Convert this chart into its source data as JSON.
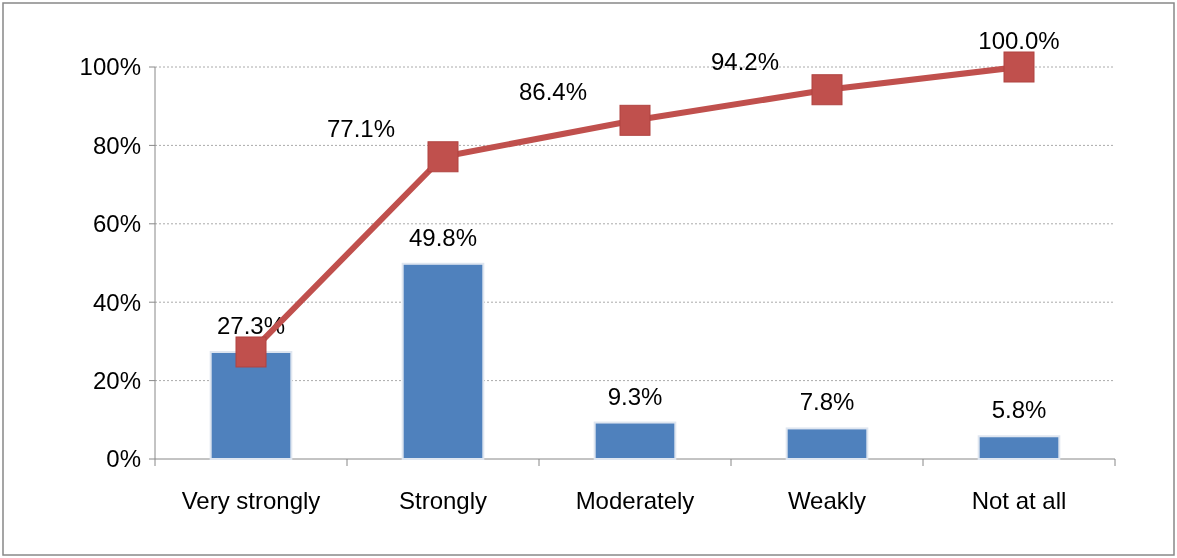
{
  "chart_data": {
    "type": "bar",
    "categories": [
      "Very strongly",
      "Strongly",
      "Moderately",
      "Weakly",
      "Not at all"
    ],
    "series": [
      {
        "color": "#4f81bd",
        "values": [
          27.3,
          49.8,
          9.3,
          7.8,
          5.8
        ],
        "value_labels": [
          "27.3%",
          "49.8%",
          "9.3%",
          "7.8%",
          "5.8%"
        ]
      },
      {
        "type": "line",
        "color": "#c0504d",
        "values": [
          27.3,
          77.1,
          86.4,
          94.2,
          100.0
        ],
        "value_labels": [
          null,
          "77.1%",
          "86.4%",
          "94.2%",
          "100.0%"
        ],
        "marker": "square"
      }
    ],
    "ylim": [
      0,
      100
    ],
    "yticks": [
      {
        "value": 0,
        "label": "0%"
      },
      {
        "value": 20,
        "label": "20%"
      },
      {
        "value": 40,
        "label": "40%"
      },
      {
        "value": 60,
        "label": "60%"
      },
      {
        "value": 80,
        "label": "80%"
      },
      {
        "value": 100,
        "label": "100%"
      }
    ],
    "grid": "y"
  }
}
